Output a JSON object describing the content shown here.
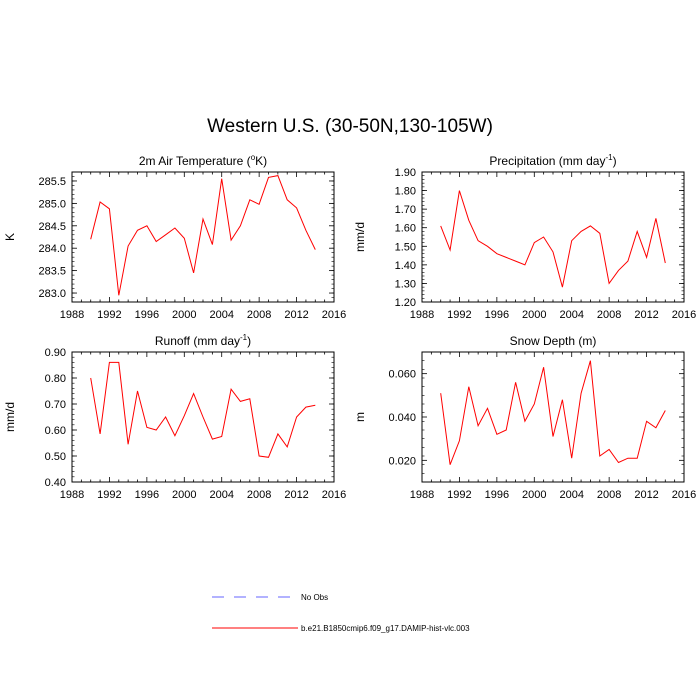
{
  "page": {
    "title": "Western U.S. (30-50N,130-105W)"
  },
  "colors": {
    "model": "#ff0000",
    "obs": "#6666ff",
    "axis": "#000000"
  },
  "legend": [
    {
      "label": "No Obs",
      "style": "dashed",
      "color": "#6666ff"
    },
    {
      "label": "b.e21.B1850cmip6.f09_g17.DAMIP-hist-vlc.003",
      "style": "solid",
      "color": "#ff0000"
    }
  ],
  "chart_data": [
    {
      "type": "line",
      "title": "2m Air Temperature (°K)",
      "title_parts": {
        "pre": "2m Air Temperature (",
        "sup": "o",
        "post": "K)"
      },
      "ylabel": "K",
      "xlim": [
        1988,
        2016
      ],
      "xticks": [
        1988,
        1992,
        1996,
        2000,
        2004,
        2008,
        2012,
        2016
      ],
      "ylim": [
        282.8,
        285.7
      ],
      "yticks": [
        283.0,
        283.5,
        284.0,
        284.5,
        285.0,
        285.5
      ],
      "ydecimals": 1,
      "series": [
        {
          "x": [
            1990,
            1991,
            1992,
            1993,
            1994,
            1995,
            1996,
            1997,
            1998,
            1999,
            2000,
            2001,
            2002,
            2003,
            2004,
            2005,
            2006,
            2007,
            2008,
            2009,
            2010,
            2011,
            2012,
            2013,
            2014
          ],
          "values": [
            284.2,
            285.03,
            284.88,
            282.95,
            284.05,
            284.4,
            284.5,
            284.15,
            284.3,
            284.45,
            284.22,
            283.45,
            284.65,
            284.08,
            285.55,
            284.18,
            284.5,
            285.08,
            284.98,
            285.58,
            285.62,
            285.08,
            284.9,
            284.4,
            283.97
          ]
        }
      ]
    },
    {
      "type": "line",
      "title": "Precipitation (mm day-1)",
      "title_parts": {
        "pre": "Precipitation (mm day",
        "sup": "-1",
        "post": ")"
      },
      "ylabel": "mm/d",
      "xlim": [
        1988,
        2016
      ],
      "xticks": [
        1988,
        1992,
        1996,
        2000,
        2004,
        2008,
        2012,
        2016
      ],
      "ylim": [
        1.2,
        1.9
      ],
      "yticks": [
        1.2,
        1.3,
        1.4,
        1.5,
        1.6,
        1.7,
        1.8,
        1.9
      ],
      "ydecimals": 2,
      "series": [
        {
          "x": [
            1990,
            1991,
            1992,
            1993,
            1994,
            1995,
            1996,
            1997,
            1998,
            1999,
            2000,
            2001,
            2002,
            2003,
            2004,
            2005,
            2006,
            2007,
            2008,
            2009,
            2010,
            2011,
            2012,
            2013,
            2014
          ],
          "values": [
            1.61,
            1.48,
            1.8,
            1.64,
            1.53,
            1.5,
            1.46,
            1.44,
            1.42,
            1.4,
            1.52,
            1.55,
            1.47,
            1.28,
            1.53,
            1.58,
            1.61,
            1.57,
            1.3,
            1.37,
            1.42,
            1.58,
            1.44,
            1.65,
            1.41
          ]
        }
      ]
    },
    {
      "type": "line",
      "title": "Runoff (mm day-1)",
      "title_parts": {
        "pre": "Runoff (mm day",
        "sup": "-1",
        "post": ")"
      },
      "ylabel": "mm/d",
      "xlim": [
        1988,
        2016
      ],
      "xticks": [
        1988,
        1992,
        1996,
        2000,
        2004,
        2008,
        2012,
        2016
      ],
      "ylim": [
        0.4,
        0.9
      ],
      "yticks": [
        0.4,
        0.5,
        0.6,
        0.7,
        0.8,
        0.9
      ],
      "ydecimals": 2,
      "series": [
        {
          "x": [
            1990,
            1991,
            1992,
            1993,
            1994,
            1995,
            1996,
            1997,
            1998,
            1999,
            2000,
            2001,
            2002,
            2003,
            2004,
            2005,
            2006,
            2007,
            2008,
            2009,
            2010,
            2011,
            2012,
            2013,
            2014
          ],
          "values": [
            0.8,
            0.585,
            0.86,
            0.86,
            0.545,
            0.75,
            0.61,
            0.6,
            0.65,
            0.578,
            0.655,
            0.74,
            0.65,
            0.565,
            0.575,
            0.757,
            0.71,
            0.72,
            0.5,
            0.495,
            0.585,
            0.535,
            0.65,
            0.688,
            0.695
          ]
        }
      ]
    },
    {
      "type": "line",
      "title": "Snow Depth (m)",
      "title_parts": {
        "pre": "Snow Depth (m)",
        "sup": "",
        "post": ""
      },
      "ylabel": "m",
      "xlim": [
        1988,
        2016
      ],
      "xticks": [
        1988,
        1992,
        1996,
        2000,
        2004,
        2008,
        2012,
        2016
      ],
      "ylim": [
        0.01,
        0.07
      ],
      "yticks": [
        0.02,
        0.04,
        0.06
      ],
      "ydecimals": 3,
      "series": [
        {
          "x": [
            1990,
            1991,
            1992,
            1993,
            1994,
            1995,
            1996,
            1997,
            1998,
            1999,
            2000,
            2001,
            2002,
            2003,
            2004,
            2005,
            2006,
            2007,
            2008,
            2009,
            2010,
            2011,
            2012,
            2013,
            2014
          ],
          "values": [
            0.051,
            0.018,
            0.029,
            0.054,
            0.036,
            0.044,
            0.032,
            0.034,
            0.056,
            0.038,
            0.046,
            0.063,
            0.031,
            0.048,
            0.021,
            0.051,
            0.066,
            0.022,
            0.025,
            0.019,
            0.021,
            0.021,
            0.038,
            0.035,
            0.043
          ]
        }
      ]
    }
  ]
}
